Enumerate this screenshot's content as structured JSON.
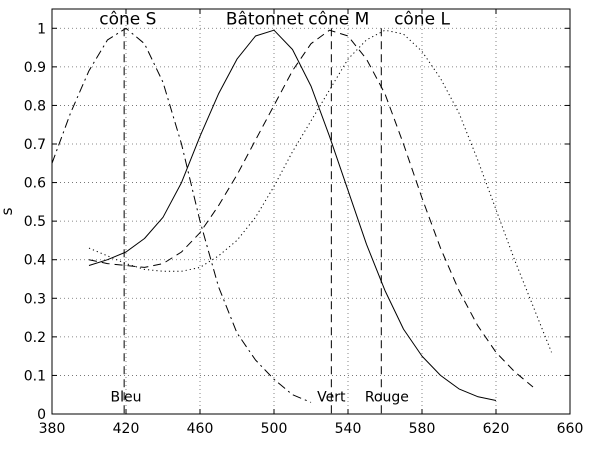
{
  "chart_data": {
    "type": "line",
    "title": "",
    "xlabel": "",
    "ylabel": "s",
    "xlim": [
      380,
      660
    ],
    "ylim": [
      0,
      1.05
    ],
    "x_ticks": [
      380,
      420,
      460,
      500,
      540,
      580,
      620,
      660
    ],
    "y_ticks": [
      0,
      0.1,
      0.2,
      0.3,
      0.4,
      0.5,
      0.6,
      0.7,
      0.8,
      0.9,
      1
    ],
    "y_tick_labels": [
      "0",
      "0.1",
      "0.2",
      "0.3",
      "0.4",
      "0.5",
      "0.6",
      "0.7",
      "0.8",
      "0.9",
      "1"
    ],
    "grid": true,
    "series": [
      {
        "name": "cône S",
        "dash": "dashdot",
        "points": [
          [
            380,
            0.65
          ],
          [
            390,
            0.78
          ],
          [
            400,
            0.89
          ],
          [
            410,
            0.97
          ],
          [
            420,
            1.0
          ],
          [
            430,
            0.96
          ],
          [
            440,
            0.86
          ],
          [
            450,
            0.7
          ],
          [
            460,
            0.5
          ],
          [
            470,
            0.33
          ],
          [
            480,
            0.21
          ],
          [
            490,
            0.14
          ],
          [
            500,
            0.09
          ],
          [
            510,
            0.05
          ],
          [
            520,
            0.03
          ]
        ]
      },
      {
        "name": "Bâtonnet",
        "dash": "solid",
        "points": [
          [
            400,
            0.385
          ],
          [
            410,
            0.4
          ],
          [
            420,
            0.42
          ],
          [
            430,
            0.455
          ],
          [
            440,
            0.51
          ],
          [
            450,
            0.6
          ],
          [
            460,
            0.72
          ],
          [
            470,
            0.83
          ],
          [
            480,
            0.92
          ],
          [
            490,
            0.98
          ],
          [
            500,
            0.995
          ],
          [
            510,
            0.945
          ],
          [
            520,
            0.85
          ],
          [
            530,
            0.72
          ],
          [
            540,
            0.58
          ],
          [
            550,
            0.44
          ],
          [
            560,
            0.32
          ],
          [
            570,
            0.22
          ],
          [
            580,
            0.15
          ],
          [
            590,
            0.1
          ],
          [
            600,
            0.065
          ],
          [
            610,
            0.045
          ],
          [
            620,
            0.035
          ]
        ]
      },
      {
        "name": "cône M",
        "dash": "dashed",
        "points": [
          [
            400,
            0.4
          ],
          [
            410,
            0.39
          ],
          [
            420,
            0.385
          ],
          [
            430,
            0.38
          ],
          [
            440,
            0.39
          ],
          [
            450,
            0.42
          ],
          [
            460,
            0.47
          ],
          [
            470,
            0.54
          ],
          [
            480,
            0.62
          ],
          [
            490,
            0.71
          ],
          [
            500,
            0.8
          ],
          [
            510,
            0.89
          ],
          [
            520,
            0.96
          ],
          [
            530,
            0.995
          ],
          [
            540,
            0.98
          ],
          [
            550,
            0.92
          ],
          [
            560,
            0.83
          ],
          [
            570,
            0.7
          ],
          [
            580,
            0.56
          ],
          [
            590,
            0.43
          ],
          [
            600,
            0.32
          ],
          [
            610,
            0.23
          ],
          [
            620,
            0.16
          ],
          [
            630,
            0.11
          ],
          [
            640,
            0.07
          ]
        ]
      },
      {
        "name": "cône L",
        "dash": "dotted",
        "points": [
          [
            400,
            0.43
          ],
          [
            410,
            0.41
          ],
          [
            420,
            0.39
          ],
          [
            430,
            0.375
          ],
          [
            440,
            0.37
          ],
          [
            450,
            0.37
          ],
          [
            460,
            0.38
          ],
          [
            470,
            0.41
          ],
          [
            480,
            0.45
          ],
          [
            490,
            0.51
          ],
          [
            500,
            0.59
          ],
          [
            510,
            0.68
          ],
          [
            520,
            0.76
          ],
          [
            530,
            0.84
          ],
          [
            540,
            0.92
          ],
          [
            550,
            0.97
          ],
          [
            560,
            0.995
          ],
          [
            570,
            0.985
          ],
          [
            580,
            0.94
          ],
          [
            590,
            0.87
          ],
          [
            600,
            0.78
          ],
          [
            610,
            0.66
          ],
          [
            620,
            0.53
          ],
          [
            630,
            0.4
          ],
          [
            640,
            0.28
          ],
          [
            650,
            0.16
          ]
        ]
      }
    ],
    "vertical_markers": [
      {
        "x": 419,
        "label": "Bleu"
      },
      {
        "x": 531,
        "label": "Vert"
      },
      {
        "x": 558,
        "label": "Rouge"
      }
    ],
    "annotations": [
      {
        "text": "cône S",
        "x": 421,
        "y": 1.025
      },
      {
        "text": "Bâtonnet",
        "x": 495,
        "y": 1.025
      },
      {
        "text": "cône M",
        "x": 535,
        "y": 1.025
      },
      {
        "text": "cône L",
        "x": 580,
        "y": 1.025
      }
    ],
    "marker_labels": [
      {
        "text": "Bleu",
        "x": 420,
        "y": 0.045
      },
      {
        "text": "Vert",
        "x": 531,
        "y": 0.045
      },
      {
        "text": "Rouge",
        "x": 561,
        "y": 0.045
      }
    ]
  }
}
